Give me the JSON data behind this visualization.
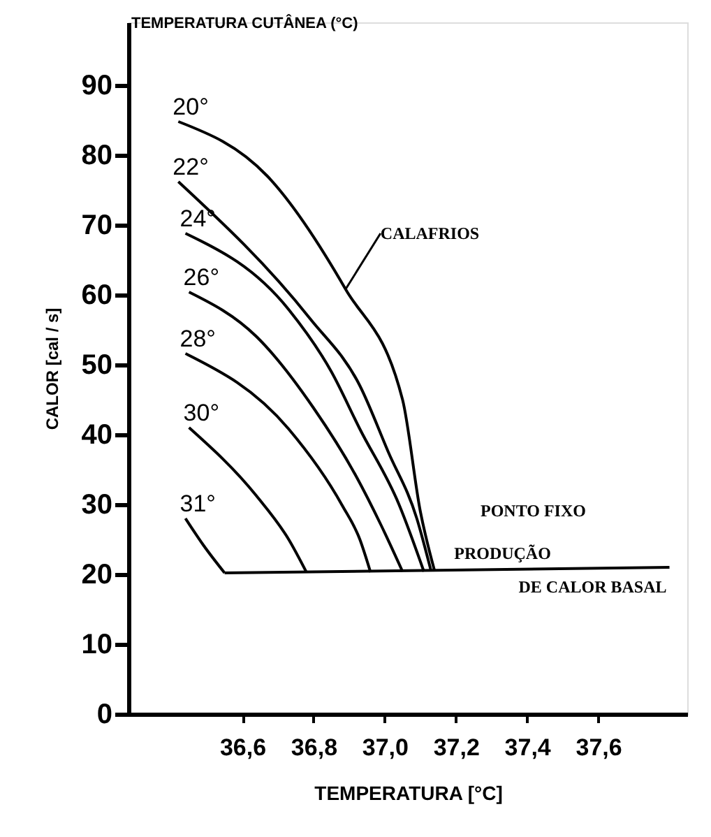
{
  "chart_data": {
    "type": "line",
    "xlabel": "TEMPERATURA [°C]",
    "ylabel": "CALOR [cal / s]",
    "xlim": [
      36.28,
      37.85
    ],
    "ylim": [
      0,
      99
    ],
    "xticks": [
      {
        "value": 36.6,
        "label": "36,6"
      },
      {
        "value": 36.8,
        "label": "36,8"
      },
      {
        "value": 37.0,
        "label": "37,0"
      },
      {
        "value": 37.2,
        "label": "37,2"
      },
      {
        "value": 37.4,
        "label": "37,4"
      },
      {
        "value": 37.6,
        "label": "37,6"
      }
    ],
    "yticks": [
      0,
      10,
      20,
      30,
      40,
      50,
      60,
      70,
      80,
      90
    ],
    "grid": false,
    "marker": "none",
    "line_style": "solid",
    "series": [
      {
        "name": "20°",
        "color": "#000000",
        "x": [
          36.42,
          36.67,
          36.89,
          37.05,
          37.1,
          37.14
        ],
        "values": [
          84.8,
          77,
          60.8,
          45,
          29,
          20.5
        ]
      },
      {
        "name": "22°",
        "color": "#000000",
        "x": [
          36.42,
          36.79,
          36.93,
          37.01,
          37.09,
          37.13
        ],
        "values": [
          76.2,
          56.6,
          47,
          37.5,
          28,
          20.5
        ]
      },
      {
        "name": "24°",
        "color": "#000000",
        "x": [
          36.44,
          36.73,
          36.85,
          36.93,
          37.04,
          37.11
        ],
        "values": [
          68.8,
          57.9,
          49,
          40.8,
          30,
          20.4
        ]
      },
      {
        "name": "26°",
        "color": "#000000",
        "x": [
          36.45,
          36.64,
          36.8,
          36.92,
          36.99,
          37.05
        ],
        "values": [
          60.4,
          54,
          43.8,
          34,
          27,
          20.4
        ]
      },
      {
        "name": "28°",
        "color": "#000000",
        "x": [
          36.44,
          36.73,
          36.88,
          36.93,
          36.96
        ],
        "values": [
          51.6,
          40.8,
          29.9,
          25,
          20.3
        ]
      },
      {
        "name": "30°",
        "color": "#000000",
        "x": [
          36.45,
          36.64,
          36.73,
          36.78
        ],
        "values": [
          41,
          31.2,
          25,
          20.3
        ]
      },
      {
        "name": "31°",
        "color": "#000000",
        "x": [
          36.44,
          36.49,
          36.55
        ],
        "values": [
          28,
          24.2,
          20.2
        ]
      },
      {
        "color": "#000000",
        "x": [
          36.55,
          37.8
        ],
        "values": [
          20.2,
          21
        ]
      }
    ],
    "annotations": [
      "TEMPERATURA CUTÂNEA (°C)",
      {
        "text": "CALAFRIOS",
        "x": 36.89,
        "y": 60.8
      },
      "PONTO FIXO",
      {
        "text": "PRODUÇÃO",
        "x": 37.14,
        "y": 20.6
      },
      {
        "text": "DE CALOR BASAL",
        "x": 37.8,
        "y": 21
      }
    ]
  }
}
